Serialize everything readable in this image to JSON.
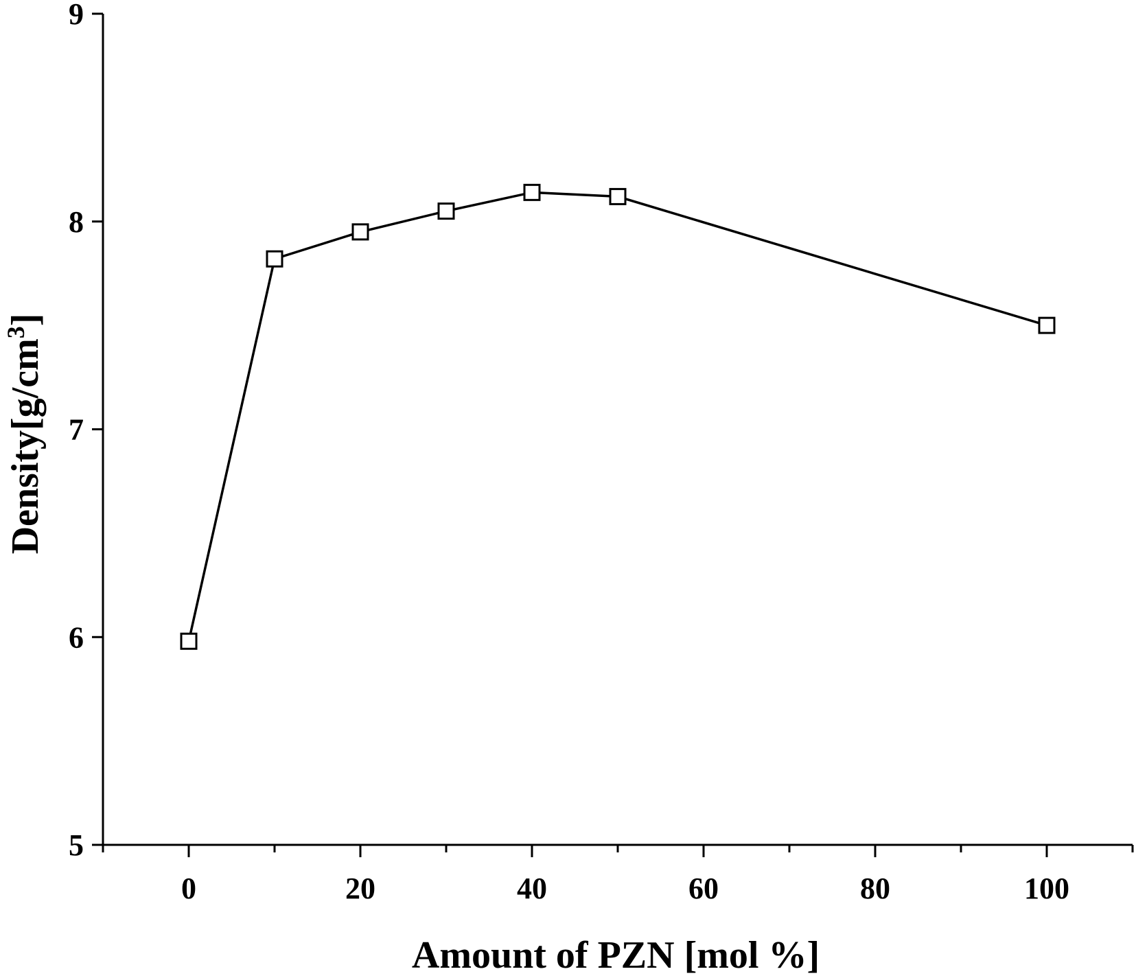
{
  "chart_data": {
    "type": "line",
    "title": "",
    "xlabel": "Amount of PZN [mol %]",
    "ylabel_main": "Density[g/cm",
    "ylabel_sup": "3",
    "ylabel_end": "]",
    "xlim": [
      -10,
      110
    ],
    "ylim": [
      5,
      9
    ],
    "x_ticks": [
      0,
      20,
      40,
      60,
      80,
      100
    ],
    "x_minor_ticks": [
      -10,
      10,
      30,
      50,
      70,
      90,
      110
    ],
    "y_ticks": [
      5,
      6,
      7,
      8,
      9
    ],
    "grid": false,
    "legend": "none",
    "marker": "open-square",
    "series": [
      {
        "x": [
          0,
          10,
          20,
          30,
          40,
          50,
          100
        ],
        "y": [
          5.98,
          7.82,
          7.95,
          8.05,
          8.14,
          8.12,
          7.5
        ]
      }
    ]
  }
}
